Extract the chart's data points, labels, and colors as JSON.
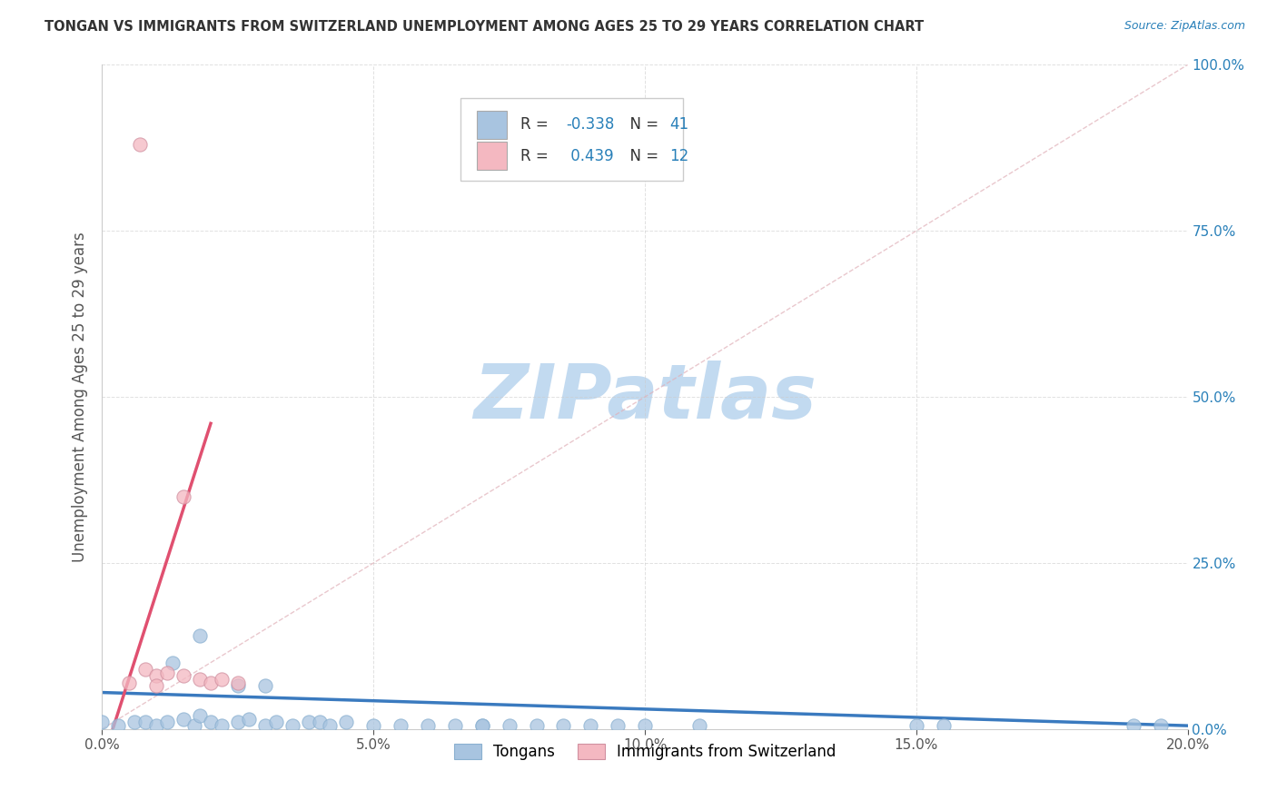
{
  "title": "TONGAN VS IMMIGRANTS FROM SWITZERLAND UNEMPLOYMENT AMONG AGES 25 TO 29 YEARS CORRELATION CHART",
  "source": "Source: ZipAtlas.com",
  "ylabel": "Unemployment Among Ages 25 to 29 years",
  "xlim": [
    0.0,
    0.2
  ],
  "ylim": [
    0.0,
    1.0
  ],
  "xticks": [
    0.0,
    0.05,
    0.1,
    0.15,
    0.2
  ],
  "xtick_labels": [
    "0.0%",
    "5.0%",
    "10.0%",
    "15.0%",
    "20.0%"
  ],
  "yticks": [
    0.0,
    0.25,
    0.5,
    0.75,
    1.0
  ],
  "ytick_labels": [
    "0.0%",
    "25.0%",
    "50.0%",
    "75.0%",
    "100.0%"
  ],
  "tongan_color": "#a8c4e0",
  "swiss_color": "#f4b8c1",
  "tongan_line_color": "#3a7abf",
  "swiss_line_color": "#e05070",
  "tongan_R": -0.338,
  "tongan_N": 41,
  "swiss_R": 0.439,
  "swiss_N": 12,
  "watermark": "ZIPatlas",
  "watermark_zip_color": "#b8d4ee",
  "watermark_atlas_color": "#8ab8d8",
  "tongan_scatter": [
    [
      0.0,
      0.01
    ],
    [
      0.003,
      0.005
    ],
    [
      0.006,
      0.01
    ],
    [
      0.008,
      0.01
    ],
    [
      0.01,
      0.005
    ],
    [
      0.012,
      0.01
    ],
    [
      0.015,
      0.015
    ],
    [
      0.017,
      0.005
    ],
    [
      0.018,
      0.02
    ],
    [
      0.02,
      0.01
    ],
    [
      0.022,
      0.005
    ],
    [
      0.025,
      0.01
    ],
    [
      0.027,
      0.015
    ],
    [
      0.03,
      0.005
    ],
    [
      0.032,
      0.01
    ],
    [
      0.035,
      0.005
    ],
    [
      0.038,
      0.01
    ],
    [
      0.04,
      0.01
    ],
    [
      0.042,
      0.005
    ],
    [
      0.045,
      0.01
    ],
    [
      0.05,
      0.005
    ],
    [
      0.055,
      0.005
    ],
    [
      0.06,
      0.005
    ],
    [
      0.065,
      0.005
    ],
    [
      0.07,
      0.005
    ],
    [
      0.075,
      0.005
    ],
    [
      0.08,
      0.005
    ],
    [
      0.085,
      0.005
    ],
    [
      0.09,
      0.005
    ],
    [
      0.095,
      0.005
    ],
    [
      0.1,
      0.005
    ],
    [
      0.11,
      0.005
    ],
    [
      0.013,
      0.1
    ],
    [
      0.018,
      0.14
    ],
    [
      0.025,
      0.065
    ],
    [
      0.03,
      0.065
    ],
    [
      0.15,
      0.005
    ],
    [
      0.155,
      0.005
    ],
    [
      0.19,
      0.005
    ],
    [
      0.195,
      0.005
    ],
    [
      0.07,
      0.005
    ]
  ],
  "swiss_scatter": [
    [
      0.007,
      0.88
    ],
    [
      0.015,
      0.35
    ],
    [
      0.005,
      0.07
    ],
    [
      0.008,
      0.09
    ],
    [
      0.01,
      0.08
    ],
    [
      0.012,
      0.085
    ],
    [
      0.015,
      0.08
    ],
    [
      0.018,
      0.075
    ],
    [
      0.02,
      0.07
    ],
    [
      0.022,
      0.075
    ],
    [
      0.025,
      0.07
    ],
    [
      0.01,
      0.065
    ]
  ],
  "tongan_line": [
    0.0,
    0.055,
    0.2,
    0.005
  ],
  "swiss_line": [
    0.0,
    -0.05,
    0.02,
    0.46
  ],
  "ref_line": [
    0.0,
    0.0,
    0.2,
    1.0
  ],
  "background_color": "#ffffff",
  "grid_color": "#cccccc",
  "title_color": "#333333",
  "axis_label_color": "#555555",
  "right_tick_color": "#2980b9",
  "legend_label1": "Tongans",
  "legend_label2": "Immigrants from Switzerland"
}
